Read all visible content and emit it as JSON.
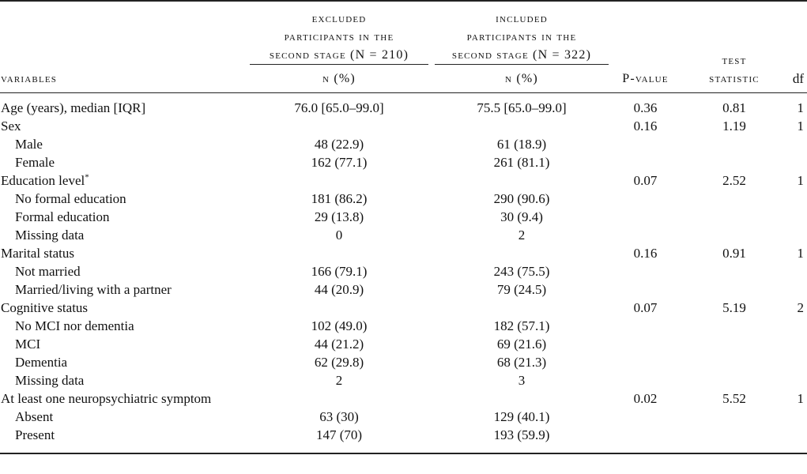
{
  "header": {
    "variables": "variables",
    "excluded": {
      "lines": [
        "excluded",
        "participants in the",
        "second stage (N = 210)"
      ],
      "unit": "n (%)"
    },
    "included": {
      "lines": [
        "included",
        "participants in the",
        "second stage (N = 322)"
      ],
      "unit": "n (%)"
    },
    "p_value": "P-value",
    "test_statistic": [
      "test",
      "statistic"
    ],
    "df": "df"
  },
  "groups": [
    {
      "label": "Age (years), median [IQR]",
      "excluded": "76.0 [65.0–99.0]",
      "included": "75.5 [65.0–99.0]",
      "p_value": "0.36",
      "test_statistic": "0.81",
      "df": "1",
      "subrows": []
    },
    {
      "label": "Sex",
      "p_value": "0.16",
      "test_statistic": "1.19",
      "df": "1",
      "subrows": [
        {
          "label": "Male",
          "excluded": "48 (22.9)",
          "included": "61 (18.9)"
        },
        {
          "label": "Female",
          "excluded": "162 (77.1)",
          "included": "261 (81.1)"
        }
      ]
    },
    {
      "label": "Education level",
      "note": "*",
      "p_value": "0.07",
      "test_statistic": "2.52",
      "df": "1",
      "subrows": [
        {
          "label": "No formal education",
          "excluded": "181 (86.2)",
          "included": "290 (90.6)"
        },
        {
          "label": "Formal education",
          "excluded": "29 (13.8)",
          "included": "30 (9.4)"
        },
        {
          "label": "Missing data",
          "excluded": "0",
          "included": "2"
        }
      ]
    },
    {
      "label": "Marital status",
      "p_value": "0.16",
      "test_statistic": "0.91",
      "df": "1",
      "subrows": [
        {
          "label": "Not married",
          "excluded": "166 (79.1)",
          "included": "243 (75.5)"
        },
        {
          "label": "Married/living with a partner",
          "excluded": "44 (20.9)",
          "included": "79 (24.5)"
        }
      ]
    },
    {
      "label": "Cognitive status",
      "p_value": "0.07",
      "test_statistic": "5.19",
      "df": "2",
      "subrows": [
        {
          "label": "No MCI nor dementia",
          "excluded": "102 (49.0)",
          "included": "182 (57.1)"
        },
        {
          "label": "MCI",
          "excluded": "44 (21.2)",
          "included": "69 (21.6)"
        },
        {
          "label": "Dementia",
          "excluded": "62 (29.8)",
          "included": "68 (21.3)"
        },
        {
          "label": "Missing data",
          "excluded": "2",
          "included": "3"
        }
      ]
    },
    {
      "label": "At least one neuropsychiatric symptom",
      "p_value": "0.02",
      "test_statistic": "5.52",
      "df": "1",
      "subrows": [
        {
          "label": "Absent",
          "excluded": "63 (30)",
          "included": "129 (40.1)"
        },
        {
          "label": "Present",
          "excluded": "147 (70)",
          "included": "193 (59.9)"
        }
      ]
    }
  ]
}
